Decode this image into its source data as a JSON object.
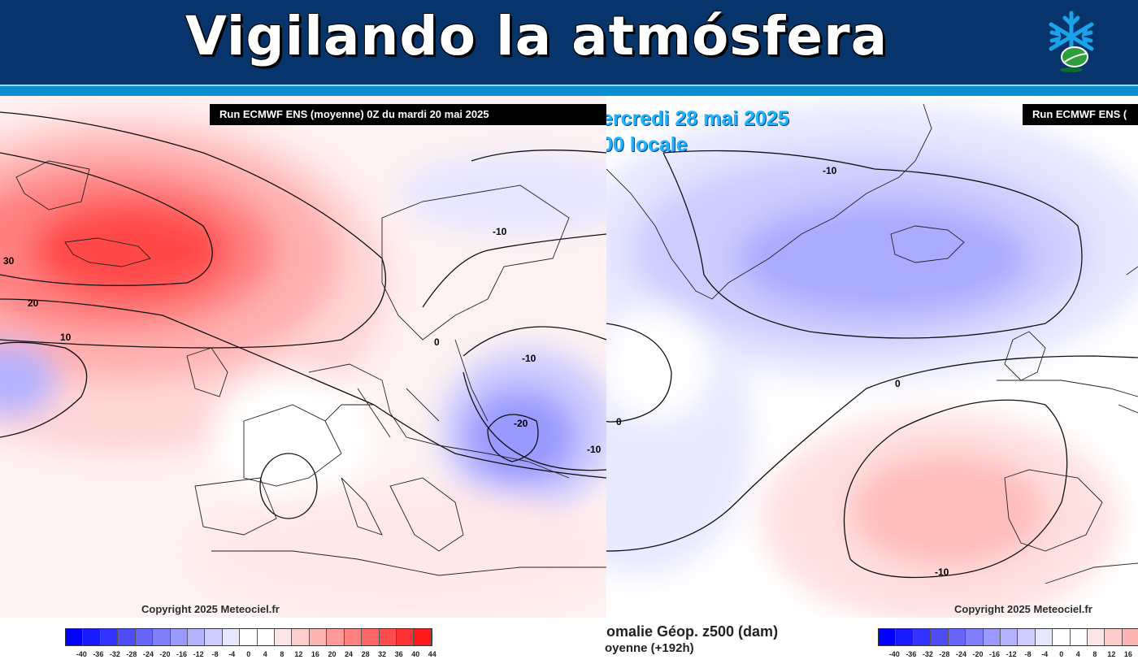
{
  "header": {
    "title": "Vigilando la atmósfera",
    "colors": {
      "bar": "#07356b",
      "stripe": "#0b8fd0"
    },
    "logo_icon": "snowflake-leaf-icon"
  },
  "left_map": {
    "run_banner": "Run ECMWF ENS (moyenne) 0Z du mardi 20 mai 2025",
    "copyright": "Copyright 2025 Meteociel.fr",
    "contour_labels": [
      "30",
      "20",
      "10",
      "-10",
      "0",
      "-10",
      "-20",
      "-10"
    ]
  },
  "right_map": {
    "run_banner": "Run ECMWF ENS (",
    "date_line1": "ercredi 28 mai 2025",
    "date_line2": "00 locale",
    "copyright": "Copyright 2025 Meteociel.fr",
    "contour_labels": [
      "-10",
      "0",
      "0",
      "-10"
    ]
  },
  "caption": {
    "line1": "omalie Géop. z500 (dam)",
    "line2": "oyenne  (+192h)"
  },
  "legend": {
    "ticks": [
      "-40",
      "-36",
      "-32",
      "-28",
      "-24",
      "-20",
      "-16",
      "-12",
      "-8",
      "-4",
      "0",
      "4",
      "8",
      "12",
      "16",
      "20",
      "24",
      "28",
      "32",
      "36",
      "40",
      "44"
    ],
    "colors": [
      "#0000ff",
      "#1a1aff",
      "#3333ff",
      "#4d4dff",
      "#6666ff",
      "#8080ff",
      "#9999ff",
      "#b3b3ff",
      "#ccccff",
      "#e6e6ff",
      "#ffffff",
      "#ffffff",
      "#ffe6e6",
      "#ffcccc",
      "#ffb3b3",
      "#ff9999",
      "#ff8080",
      "#ff6666",
      "#ff4d4d",
      "#ff3333",
      "#ff1a1a"
    ]
  }
}
